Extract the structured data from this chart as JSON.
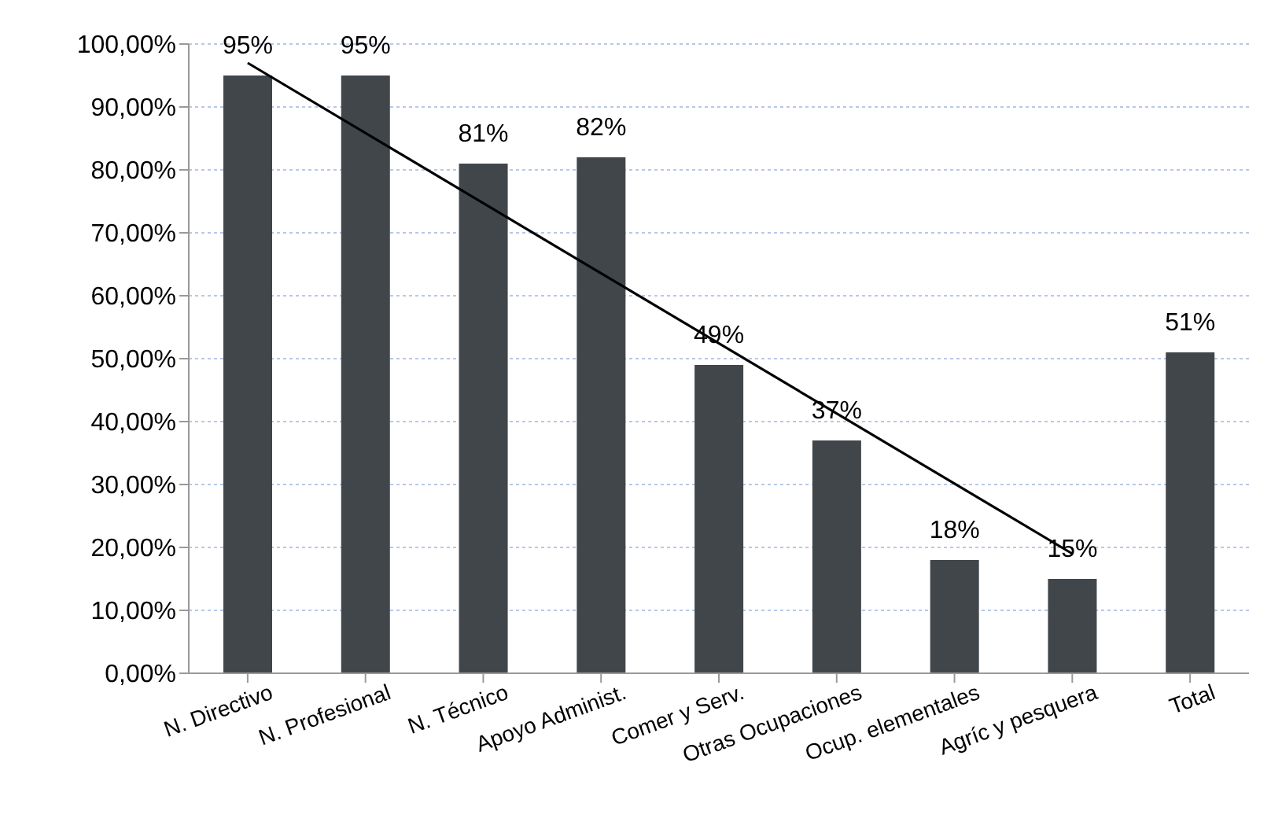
{
  "chart_data": {
    "type": "bar",
    "categories": [
      "N. Directivo",
      "N. Profesional",
      "N. Técnico",
      "Apoyo Administ.",
      "Comer y Serv.",
      "Otras Ocupaciones",
      "Ocup. elementales",
      "Agríc y pesquera",
      "Total"
    ],
    "series": [
      {
        "color": "#41464b",
        "values": [
          95,
          95,
          81,
          82,
          49,
          37,
          18,
          15,
          51
        ],
        "value_labels": [
          "95%",
          "95%",
          "81%",
          "82%",
          "49%",
          "37%",
          "18%",
          "15%",
          "51%"
        ]
      },
      {
        "type": "line",
        "color": "#000000",
        "x": [
          "N. Directivo",
          "Agríc y pesquera"
        ],
        "values": [
          97,
          19
        ],
        "marker": "none",
        "line_style": "solid"
      }
    ],
    "ylim": [
      0,
      100
    ],
    "yticks": [
      {
        "value": 0,
        "label": "0,00%"
      },
      {
        "value": 10,
        "label": "10,00%"
      },
      {
        "value": 20,
        "label": "20,00%"
      },
      {
        "value": 30,
        "label": "30,00%"
      },
      {
        "value": 40,
        "label": "40,00%"
      },
      {
        "value": 50,
        "label": "50,00%"
      },
      {
        "value": 60,
        "label": "60,00%"
      },
      {
        "value": 70,
        "label": "70,00%"
      },
      {
        "value": 80,
        "label": "80,00%"
      },
      {
        "value": 90,
        "label": "90,00%"
      },
      {
        "value": 100,
        "label": "100,00%"
      }
    ],
    "grid": "y",
    "legend": false
  }
}
